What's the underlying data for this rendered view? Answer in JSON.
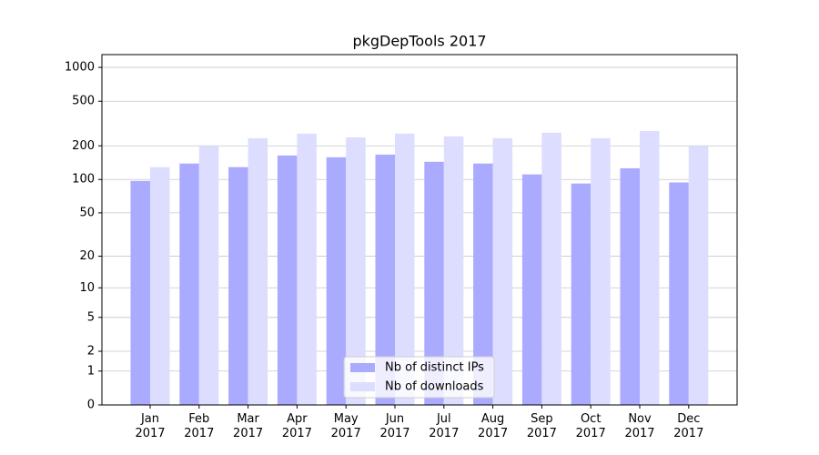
{
  "chart_data": {
    "type": "bar",
    "title": "pkgDepTools 2017",
    "categories": [
      "Jan\n2017",
      "Feb\n2017",
      "Mar\n2017",
      "Apr\n2017",
      "May\n2017",
      "Jun\n2017",
      "Jul\n2017",
      "Aug\n2017",
      "Sep\n2017",
      "Oct\n2017",
      "Nov\n2017",
      "Dec\n2017"
    ],
    "series": [
      {
        "name": "Nb of distinct IPs",
        "color": "#aaaaff",
        "values": [
          97,
          139,
          129,
          164,
          158,
          167,
          144,
          139,
          111,
          92,
          126,
          94
        ]
      },
      {
        "name": "Nb of downloads",
        "color": "#ddddff",
        "values": [
          129,
          200,
          234,
          257,
          238,
          257,
          243,
          234,
          262,
          234,
          271,
          200
        ]
      }
    ],
    "yscale": "symlog",
    "ylim": [
      0,
      1300
    ],
    "yticks": [
      0,
      1,
      2,
      5,
      10,
      20,
      50,
      100,
      200,
      500,
      1000
    ],
    "grid": true,
    "legend": "lower center"
  }
}
